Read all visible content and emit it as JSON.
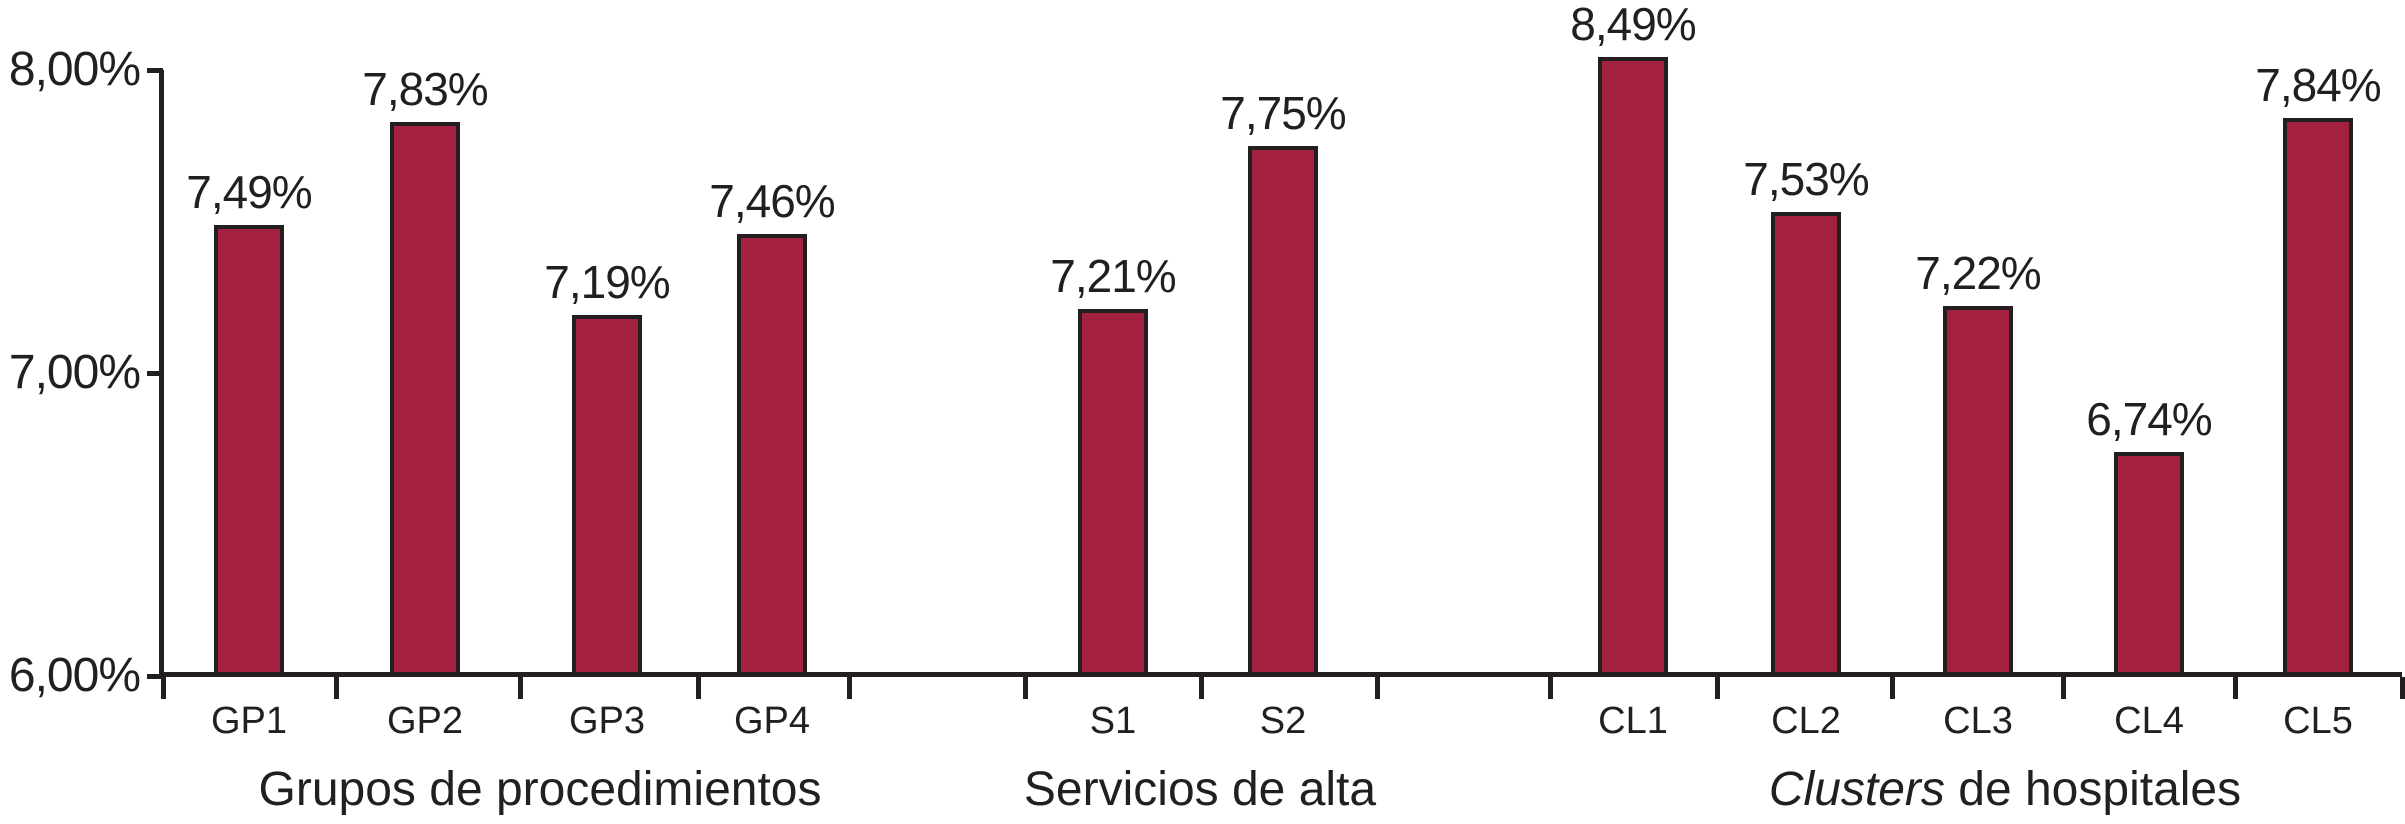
{
  "chart_data": {
    "type": "bar",
    "title": "",
    "categories": [
      "GP1",
      "GP2",
      "GP3",
      "GP4",
      "S1",
      "S2",
      "CL1",
      "CL2",
      "CL3",
      "CL4",
      "CL5"
    ],
    "values": [
      7.49,
      7.83,
      7.19,
      7.46,
      7.21,
      7.75,
      8.49,
      7.53,
      7.22,
      6.74,
      7.84
    ],
    "value_labels": [
      "7,49%",
      "7,83%",
      "7,19%",
      "7,46%",
      "7,21%",
      "7,75%",
      "8,49%",
      "7,53%",
      "7,22%",
      "6,74%",
      "7,84%"
    ],
    "y_tick_labels": [
      "8,00%",
      "7,00%",
      "6,00%"
    ],
    "y_tick_values": [
      8.0,
      7.0,
      6.0
    ],
    "ylim": [
      6.0,
      8.0
    ],
    "groups": [
      {
        "italic": "",
        "text": "Grupos de procedimientos",
        "categories": [
          "GP1",
          "GP2",
          "GP3",
          "GP4"
        ]
      },
      {
        "italic": "",
        "text": "Servicios de alta",
        "categories": [
          "S1",
          "S2"
        ]
      },
      {
        "italic": "Clusters",
        "text": " de hospitales",
        "categories": [
          "CL1",
          "CL2",
          "CL3",
          "CL4",
          "CL5"
        ]
      }
    ],
    "bar_color": "#A4223F",
    "axis_color": "#231F20",
    "grid": false,
    "legend": "none"
  }
}
